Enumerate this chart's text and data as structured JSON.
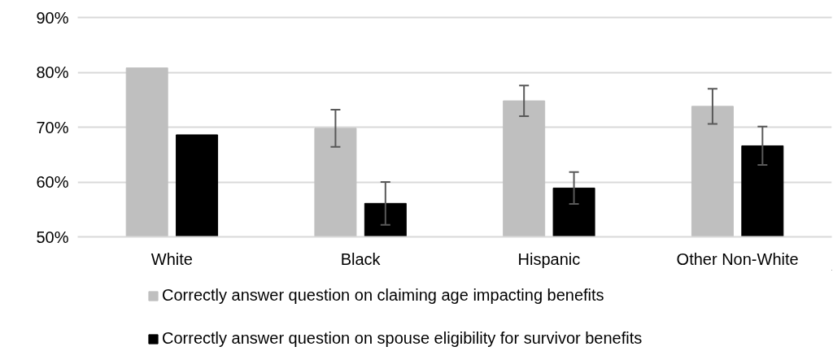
{
  "chart_data": {
    "type": "bar",
    "categories": [
      "White",
      "Black",
      "Hispanic",
      "Other Non-White"
    ],
    "series": [
      {
        "name": "Correctly answer question on claiming age impacting benefits",
        "color": "#bfbfbf",
        "values": [
          80.8,
          69.8,
          74.8,
          73.8
        ],
        "errors": [
          null,
          3.4,
          2.8,
          3.2
        ]
      },
      {
        "name": "Correctly answer question on spouse eligibility for survivor benefits",
        "color": "#000000",
        "values": [
          68.6,
          56.1,
          58.9,
          66.6
        ],
        "errors": [
          null,
          3.9,
          2.9,
          3.5
        ]
      }
    ],
    "ylim": [
      50,
      90
    ],
    "yticks": [
      {
        "value": 50,
        "label": "50%"
      },
      {
        "value": 60,
        "label": "60%"
      },
      {
        "value": 70,
        "label": "70%"
      },
      {
        "value": 80,
        "label": "80%"
      },
      {
        "value": 90,
        "label": "90%"
      }
    ],
    "grid": "y",
    "legend": "bottom"
  }
}
